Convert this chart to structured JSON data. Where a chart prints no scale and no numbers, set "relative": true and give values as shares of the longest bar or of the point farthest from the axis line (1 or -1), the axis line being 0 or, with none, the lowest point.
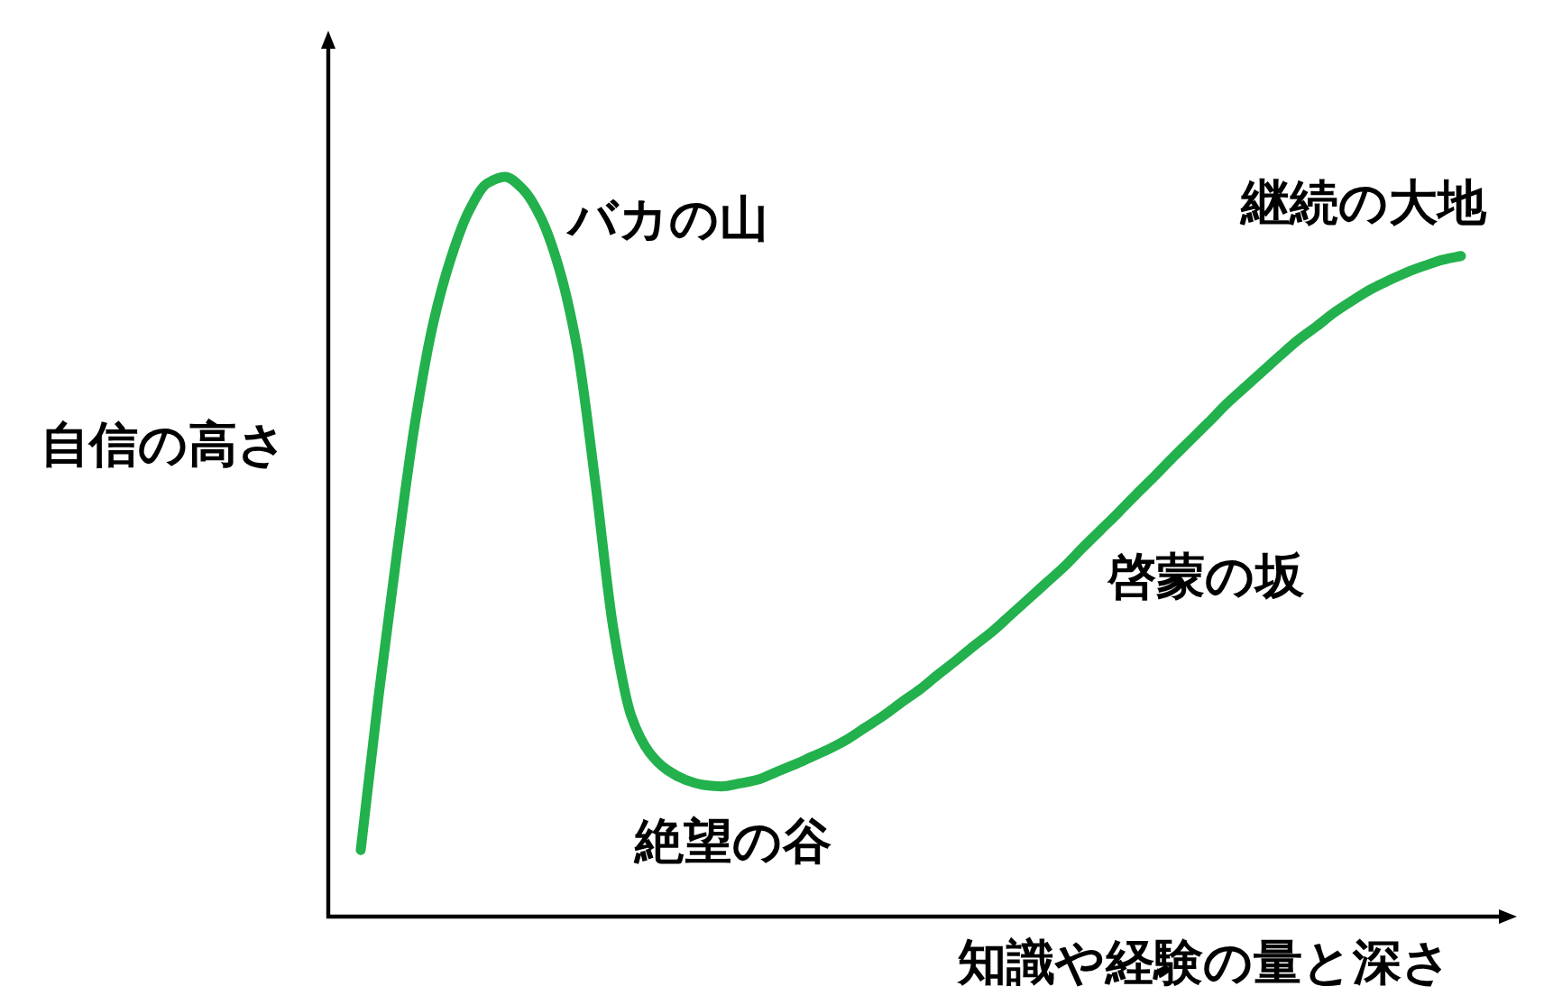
{
  "chart_data": {
    "type": "line",
    "relative": true,
    "xlabel": "知識や経験の量と深さ",
    "ylabel": "自信の高さ",
    "categories": [
      null,
      null,
      null,
      null,
      null,
      null,
      null,
      null,
      null,
      null,
      null,
      null,
      null,
      null,
      null,
      null,
      null,
      null,
      null,
      null,
      null,
      null,
      null,
      null,
      null,
      null,
      null,
      null,
      null,
      null,
      null,
      null,
      null,
      null,
      null,
      null,
      null,
      null,
      null,
      null,
      null,
      null,
      null,
      null,
      null,
      null,
      null,
      null,
      null,
      null,
      null,
      null,
      null,
      null,
      null,
      null,
      null,
      null,
      null,
      null,
      null,
      null
    ],
    "series": [
      {
        "color": "#22b14c",
        "values": [
          0.09,
          0.3,
          0.49,
          0.666,
          0.8,
          0.89,
          0.954,
          0.991,
          1.0,
          0.983,
          0.944,
          0.876,
          0.768,
          0.588,
          0.39,
          0.271,
          0.222,
          0.198,
          0.185,
          0.178,
          0.176,
          0.18,
          0.185,
          0.195,
          0.205,
          0.216,
          0.227,
          0.24,
          0.256,
          0.272,
          0.29,
          0.307,
          0.327,
          0.346,
          0.366,
          0.385,
          0.407,
          0.429,
          0.451,
          0.473,
          0.498,
          0.522,
          0.546,
          0.571,
          0.595,
          0.62,
          0.644,
          0.668,
          0.693,
          0.715,
          0.737,
          0.759,
          0.78,
          0.798,
          0.817,
          0.833,
          0.848,
          0.86,
          0.871,
          0.88,
          0.888,
          0.893
        ]
      }
    ],
    "annotations": [
      "バカの山",
      "絶望の谷",
      "啓蒙の坂",
      "継続の大地"
    ]
  }
}
